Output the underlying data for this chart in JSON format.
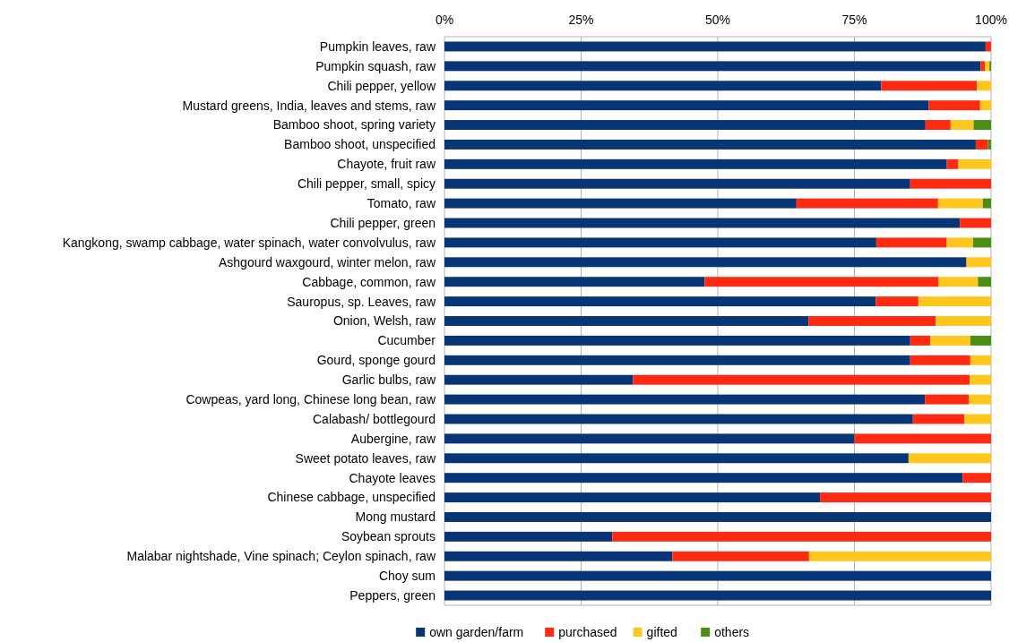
{
  "chart_data": {
    "type": "bar",
    "orientation": "horizontal",
    "stacked": true,
    "categories": [
      "Pumpkin leaves, raw",
      "Pumpkin squash, raw",
      "Chili pepper, yellow",
      "Mustard greens, India, leaves and stems, raw",
      "Bamboo shoot, spring variety",
      "Bamboo shoot, unspecified",
      "Chayote, fruit raw",
      "Chili pepper, small, spicy",
      "Tomato, raw",
      "Chili pepper, green",
      "Kangkong, swamp cabbage, water spinach, water convolvulus, raw",
      "Ashgourd waxgourd, winter melon, raw",
      "Cabbage, common, raw",
      "Sauropus, sp. Leaves, raw",
      "Onion, Welsh, raw",
      "Cucumber",
      "Gourd, sponge gourd",
      "Garlic bulbs, raw",
      "Cowpeas, yard long, Chinese long bean, raw",
      "Calabash/ bottlegourd",
      "Aubergine, raw",
      "Sweet potato leaves, raw",
      "Chayote leaves",
      "Chinese cabbage, unspecified",
      "Mong mustard",
      "Soybean sprouts",
      "Malabar nightshade, Vine spinach; Ceylon spinach, raw",
      "Choy sum",
      "Peppers, green"
    ],
    "series": [
      {
        "name": "own garden/farm",
        "color": "#083576",
        "values": [
          99.0,
          98.1,
          79.9,
          88.6,
          88.0,
          97.2,
          91.9,
          85.2,
          64.4,
          94.3,
          79.0,
          95.5,
          47.6,
          78.9,
          66.6,
          85.2,
          85.2,
          34.5,
          87.9,
          85.7,
          75.0,
          84.9,
          94.8,
          68.7,
          100,
          30.7,
          41.7,
          100,
          100
        ]
      },
      {
        "name": "purchased",
        "color": "#ff2a12",
        "values": [
          1.0,
          0.8,
          17.5,
          9.4,
          4.6,
          2.2,
          2.1,
          14.8,
          25.9,
          5.7,
          12.9,
          0,
          42.8,
          7.8,
          23.3,
          3.7,
          11.0,
          61.6,
          8.0,
          9.4,
          25.0,
          0,
          5.2,
          31.3,
          0,
          69.3,
          25.0,
          0,
          0
        ]
      },
      {
        "name": "gifted",
        "color": "#ffc71e",
        "values": [
          0,
          0.8,
          2.6,
          2.0,
          4.2,
          0,
          6.0,
          0,
          8.2,
          0,
          4.8,
          4.5,
          7.2,
          13.3,
          10.1,
          7.3,
          3.8,
          3.9,
          4.1,
          4.9,
          0,
          15.1,
          0,
          0,
          0,
          0,
          33.3,
          0,
          0
        ]
      },
      {
        "name": "others",
        "color": "#4a8e16",
        "values": [
          0,
          0.3,
          0,
          0,
          3.2,
          0.6,
          0,
          0,
          1.5,
          0,
          3.3,
          0,
          2.4,
          0,
          0,
          3.8,
          0,
          0,
          0,
          0,
          0,
          0,
          0,
          0,
          0,
          0,
          0,
          0,
          0
        ]
      }
    ],
    "xlim": [
      0,
      100
    ],
    "xticks": [
      {
        "value": 0,
        "label": "0%"
      },
      {
        "value": 25,
        "label": "25%"
      },
      {
        "value": 50,
        "label": "50%"
      },
      {
        "value": 75,
        "label": "75%"
      },
      {
        "value": 100,
        "label": "100%"
      }
    ],
    "grid": "x",
    "legend": "bottom"
  }
}
